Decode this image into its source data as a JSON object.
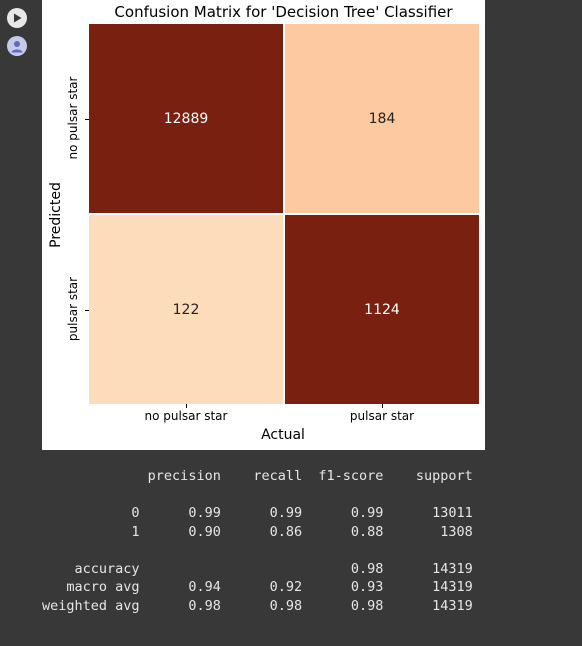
{
  "notebook": {
    "run_icon": "play-circle-icon",
    "avatar_icon": "user-avatar-icon"
  },
  "chart_data": {
    "type": "heatmap",
    "title": "Confusion Matrix for 'Decision Tree' Classifier",
    "xlabel": "Actual",
    "ylabel": "Predicted",
    "x_categories": [
      "no pulsar star",
      "pulsar star"
    ],
    "y_categories": [
      "no pulsar star",
      "pulsar star"
    ],
    "values": [
      [
        12889,
        184
      ],
      [
        122,
        1124
      ]
    ],
    "colormap": "Oranges",
    "cell_colors": [
      [
        "#7a2010",
        "#fdc9a0"
      ],
      [
        "#fddcbb",
        "#7a2010"
      ]
    ],
    "value_colors": [
      [
        "#ffffff",
        "#222222"
      ],
      [
        "#222222",
        "#ffffff"
      ]
    ]
  },
  "report": {
    "header": [
      "",
      "precision",
      "recall",
      "f1-score",
      "support"
    ],
    "rows": [
      [
        "0",
        "0.99",
        "0.99",
        "0.99",
        "13011"
      ],
      [
        "1",
        "0.90",
        "0.86",
        "0.88",
        "1308"
      ],
      [
        "",
        "",
        "",
        "",
        ""
      ],
      [
        "accuracy",
        "",
        "",
        "0.98",
        "14319"
      ],
      [
        "macro avg",
        "0.94",
        "0.92",
        "0.93",
        "14319"
      ],
      [
        "weighted avg",
        "0.98",
        "0.98",
        "0.98",
        "14319"
      ]
    ]
  }
}
